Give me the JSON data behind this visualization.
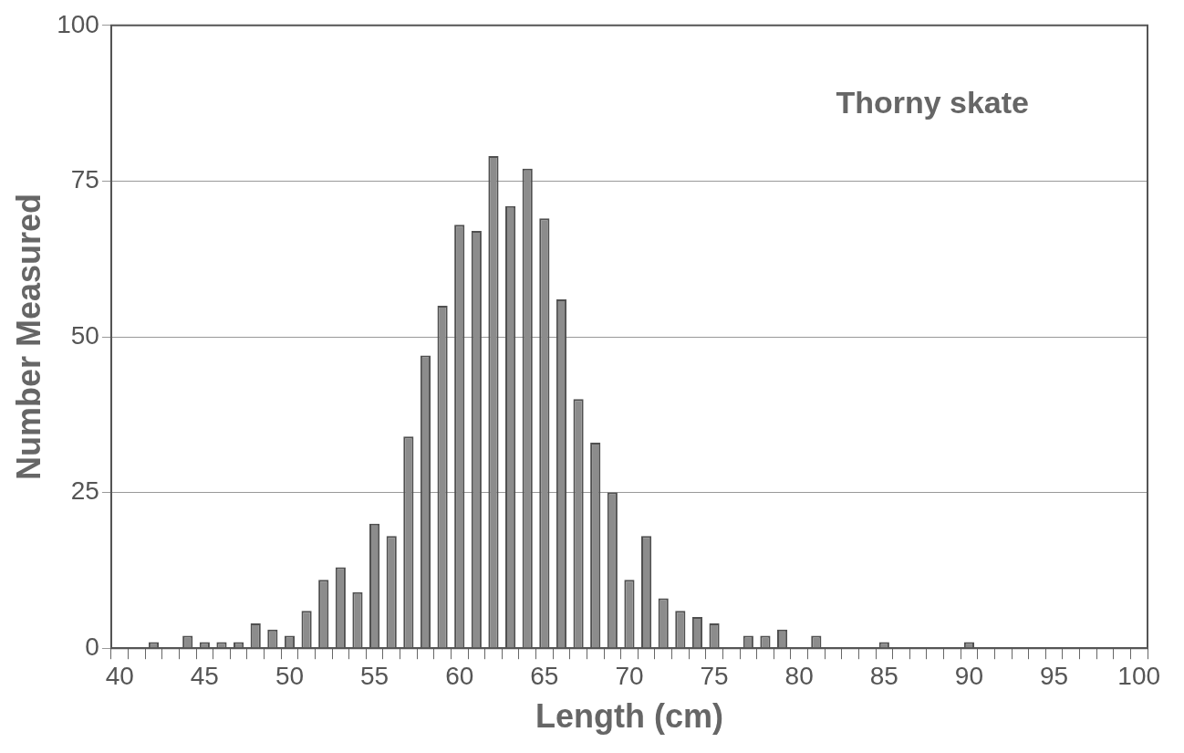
{
  "chart_data": {
    "type": "bar",
    "xlabel": "Length (cm)",
    "ylabel": "Number Measured",
    "annotations": [
      "Thorny skate"
    ],
    "categories": [
      "40",
      null,
      null,
      null,
      null,
      "45",
      null,
      null,
      null,
      null,
      "50",
      null,
      null,
      null,
      null,
      "55",
      null,
      null,
      null,
      null,
      "60",
      null,
      null,
      null,
      null,
      "65",
      null,
      null,
      null,
      null,
      "70",
      null,
      null,
      null,
      null,
      "75",
      null,
      null,
      null,
      null,
      "80",
      null,
      null,
      null,
      null,
      "85",
      null,
      null,
      null,
      null,
      "90",
      null,
      null,
      null,
      null,
      "95",
      null,
      null,
      null,
      null,
      "100"
    ],
    "values": [
      0,
      0,
      1,
      0,
      2,
      1,
      1,
      1,
      4,
      3,
      2,
      6,
      11,
      13,
      9,
      20,
      18,
      34,
      47,
      55,
      68,
      67,
      79,
      71,
      77,
      69,
      56,
      40,
      33,
      25,
      11,
      18,
      8,
      6,
      5,
      4,
      0,
      2,
      2,
      3,
      0,
      2,
      0,
      0,
      0,
      1,
      0,
      0,
      0,
      0,
      1,
      0,
      0,
      0,
      0,
      0,
      0,
      0,
      0,
      0,
      0
    ],
    "color": "#8c8c8c",
    "ylim": [
      0,
      100
    ],
    "yticks": [
      0,
      25,
      50,
      75,
      100
    ],
    "grid": "y",
    "legend": false
  }
}
